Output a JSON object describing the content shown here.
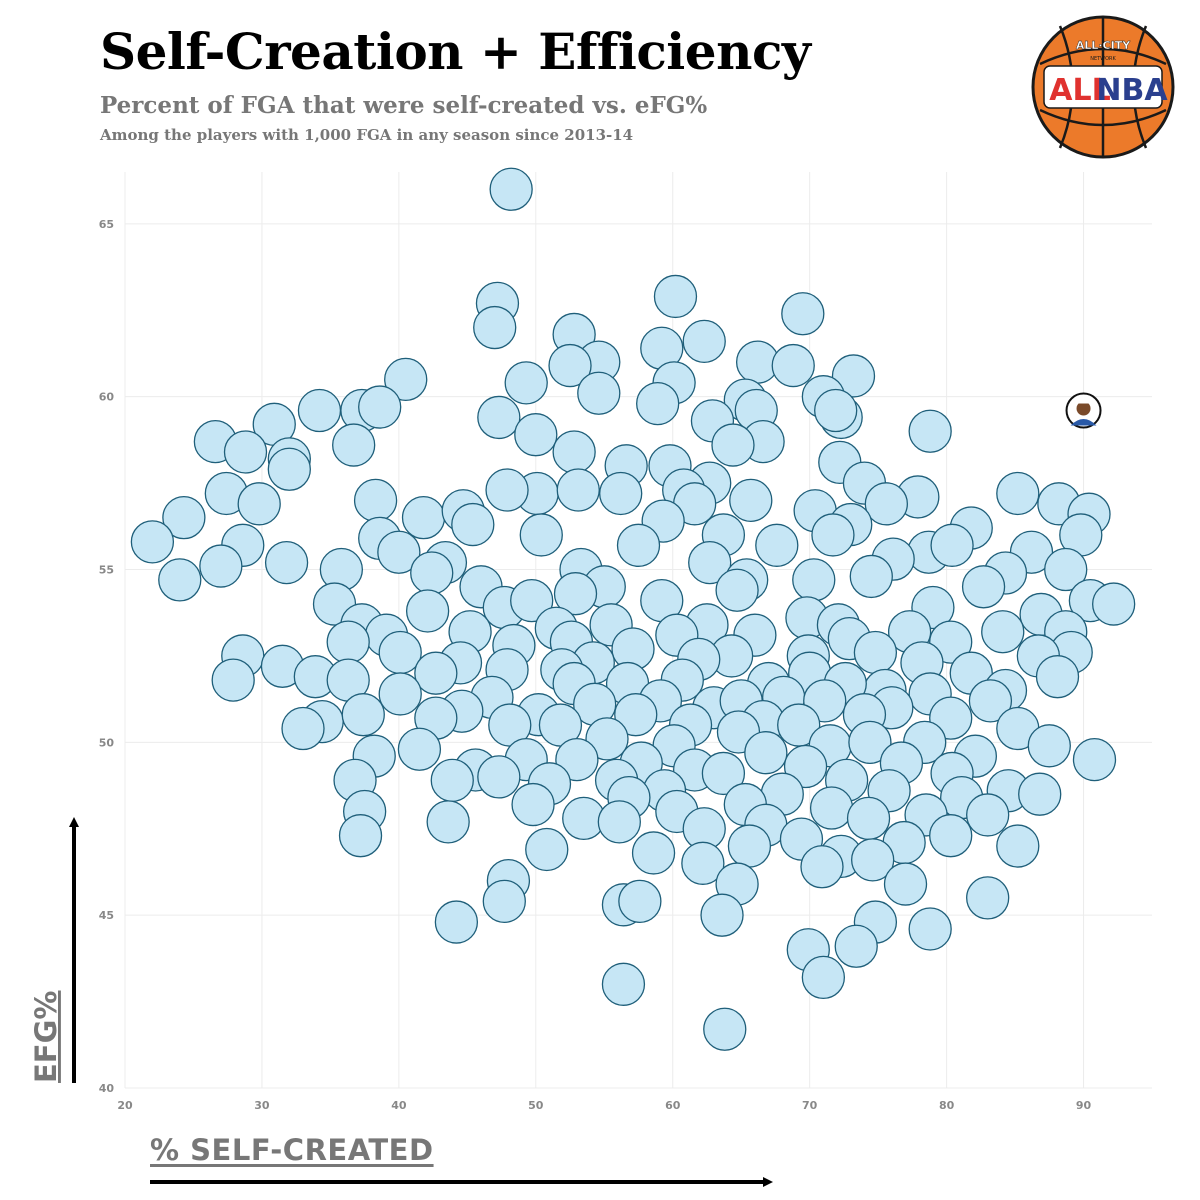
{
  "title": "Self-Creation + Efficiency",
  "subtitle": "Percent of FGA that were self-created vs. eFG%",
  "note": "Among the players with 1,000 FGA in any season since 2013-14",
  "logo": {
    "top_text": "ALL·CITY",
    "main_text_left": "ALL",
    "main_text_right": "NBA",
    "small_text": "NETWORK"
  },
  "colors": {
    "bubble_fill": "#c6e6f5",
    "bubble_stroke": "#1f5f7a",
    "grid": "#ececec",
    "axis_text": "#888888",
    "logo_orange": "#ec7a2a",
    "logo_red": "#e0322f",
    "logo_blue": "#2a3f8e"
  },
  "chart_data": {
    "type": "scatter",
    "xlabel": "% SELF-CREATED",
    "ylabel": "EFG%",
    "xlim": [
      20,
      95
    ],
    "ylim": [
      40,
      66.5
    ],
    "xticks": [
      20,
      30,
      40,
      50,
      60,
      70,
      80,
      90
    ],
    "yticks": [
      40,
      45,
      50,
      55,
      60,
      65
    ],
    "grid": true,
    "highlight": {
      "x": 90.0,
      "y": 59.6,
      "marker": "player-photo"
    },
    "points": [
      [
        48.2,
        66.0
      ],
      [
        60.2,
        62.9
      ],
      [
        47.2,
        62.7
      ],
      [
        69.5,
        62.4
      ],
      [
        47.0,
        62.0
      ],
      [
        52.8,
        61.8
      ],
      [
        62.3,
        61.6
      ],
      [
        59.2,
        61.4
      ],
      [
        66.2,
        61.0
      ],
      [
        68.8,
        60.9
      ],
      [
        73.2,
        60.6
      ],
      [
        54.6,
        61.0
      ],
      [
        52.5,
        60.9
      ],
      [
        49.3,
        60.4
      ],
      [
        40.5,
        60.5
      ],
      [
        60.1,
        60.4
      ],
      [
        71.0,
        60.0
      ],
      [
        54.6,
        60.1
      ],
      [
        65.3,
        59.9
      ],
      [
        34.2,
        59.6
      ],
      [
        37.3,
        59.6
      ],
      [
        38.6,
        59.7
      ],
      [
        72.3,
        59.4
      ],
      [
        71.9,
        59.6
      ],
      [
        66.1,
        59.6
      ],
      [
        47.3,
        59.4
      ],
      [
        58.9,
        59.8
      ],
      [
        62.9,
        59.3
      ],
      [
        78.8,
        59.0
      ],
      [
        30.9,
        59.2
      ],
      [
        26.6,
        58.7
      ],
      [
        50.0,
        58.9
      ],
      [
        66.6,
        58.7
      ],
      [
        64.4,
        58.6
      ],
      [
        36.7,
        58.6
      ],
      [
        28.8,
        58.4
      ],
      [
        52.8,
        58.4
      ],
      [
        72.2,
        58.1
      ],
      [
        32.0,
        58.2
      ],
      [
        59.8,
        58.0
      ],
      [
        32.0,
        57.9
      ],
      [
        56.6,
        58.0
      ],
      [
        62.7,
        57.5
      ],
      [
        74.0,
        57.5
      ],
      [
        27.4,
        57.2
      ],
      [
        50.1,
        57.2
      ],
      [
        47.9,
        57.3
      ],
      [
        53.1,
        57.3
      ],
      [
        60.8,
        57.3
      ],
      [
        65.7,
        57.0
      ],
      [
        77.9,
        57.1
      ],
      [
        85.2,
        57.2
      ],
      [
        88.2,
        56.9
      ],
      [
        90.4,
        56.6
      ],
      [
        75.6,
        56.9
      ],
      [
        81.8,
        56.2
      ],
      [
        38.3,
        57.0
      ],
      [
        41.8,
        56.5
      ],
      [
        24.3,
        56.5
      ],
      [
        44.7,
        56.7
      ],
      [
        29.8,
        56.9
      ],
      [
        45.4,
        56.3
      ],
      [
        63.7,
        56.0
      ],
      [
        56.2,
        57.2
      ],
      [
        70.4,
        56.7
      ],
      [
        73.0,
        56.3
      ],
      [
        61.6,
        56.9
      ],
      [
        59.3,
        56.4
      ],
      [
        67.6,
        55.7
      ],
      [
        71.7,
        56.0
      ],
      [
        89.8,
        56.0
      ],
      [
        38.6,
        55.9
      ],
      [
        50.4,
        56.0
      ],
      [
        22.0,
        55.8
      ],
      [
        28.6,
        55.7
      ],
      [
        43.4,
        55.2
      ],
      [
        40.0,
        55.5
      ],
      [
        78.7,
        55.5
      ],
      [
        80.4,
        55.7
      ],
      [
        86.2,
        55.5
      ],
      [
        57.5,
        55.7
      ],
      [
        62.7,
        55.2
      ],
      [
        76.1,
        55.3
      ],
      [
        31.8,
        55.2
      ],
      [
        27.0,
        55.1
      ],
      [
        35.8,
        55.0
      ],
      [
        53.3,
        55.0
      ],
      [
        84.3,
        54.9
      ],
      [
        74.5,
        54.8
      ],
      [
        88.7,
        55.0
      ],
      [
        65.4,
        54.7
      ],
      [
        42.4,
        54.9
      ],
      [
        70.3,
        54.7
      ],
      [
        55.0,
        54.5
      ],
      [
        64.7,
        54.4
      ],
      [
        24.0,
        54.7
      ],
      [
        46.0,
        54.5
      ],
      [
        82.7,
        54.5
      ],
      [
        52.9,
        54.3
      ],
      [
        90.5,
        54.1
      ],
      [
        92.2,
        54.0
      ],
      [
        59.2,
        54.1
      ],
      [
        35.3,
        54.0
      ],
      [
        47.7,
        53.9
      ],
      [
        49.7,
        54.1
      ],
      [
        79.0,
        53.9
      ],
      [
        69.8,
        53.6
      ],
      [
        86.9,
        53.7
      ],
      [
        62.5,
        53.4
      ],
      [
        37.3,
        53.4
      ],
      [
        55.5,
        53.4
      ],
      [
        51.5,
        53.3
      ],
      [
        72.1,
        53.4
      ],
      [
        42.1,
        53.8
      ],
      [
        88.7,
        53.2
      ],
      [
        72.9,
        53.0
      ],
      [
        77.3,
        53.2
      ],
      [
        60.3,
        53.1
      ],
      [
        66.0,
        53.1
      ],
      [
        84.1,
        53.2
      ],
      [
        39.1,
        53.1
      ],
      [
        45.2,
        53.2
      ],
      [
        52.6,
        52.9
      ],
      [
        48.4,
        52.8
      ],
      [
        36.3,
        52.9
      ],
      [
        80.3,
        52.9
      ],
      [
        74.8,
        52.6
      ],
      [
        57.1,
        52.7
      ],
      [
        69.9,
        52.5
      ],
      [
        64.3,
        52.5
      ],
      [
        89.1,
        52.6
      ],
      [
        61.9,
        52.4
      ],
      [
        28.6,
        52.5
      ],
      [
        86.7,
        52.5
      ],
      [
        40.1,
        52.6
      ],
      [
        54.2,
        52.3
      ],
      [
        78.2,
        52.3
      ],
      [
        44.5,
        52.3
      ],
      [
        31.5,
        52.2
      ],
      [
        51.9,
        52.1
      ],
      [
        70.0,
        52.0
      ],
      [
        47.9,
        52.1
      ],
      [
        33.9,
        51.9
      ],
      [
        42.7,
        52.0
      ],
      [
        60.7,
        51.8
      ],
      [
        81.8,
        52.0
      ],
      [
        27.9,
        51.8
      ],
      [
        56.7,
        51.7
      ],
      [
        67.0,
        51.7
      ],
      [
        75.5,
        51.5
      ],
      [
        72.6,
        51.7
      ],
      [
        88.1,
        51.9
      ],
      [
        36.3,
        51.8
      ],
      [
        52.8,
        51.7
      ],
      [
        78.8,
        51.4
      ],
      [
        84.3,
        51.5
      ],
      [
        68.1,
        51.3
      ],
      [
        46.8,
        51.3
      ],
      [
        59.1,
        51.2
      ],
      [
        63.0,
        51.0
      ],
      [
        71.1,
        51.2
      ],
      [
        40.1,
        51.4
      ],
      [
        54.3,
        51.1
      ],
      [
        65.0,
        51.2
      ],
      [
        76.0,
        51.0
      ],
      [
        83.2,
        51.2
      ],
      [
        50.2,
        50.8
      ],
      [
        44.6,
        50.9
      ],
      [
        34.4,
        50.6
      ],
      [
        57.3,
        50.8
      ],
      [
        61.3,
        50.5
      ],
      [
        37.4,
        50.8
      ],
      [
        74.0,
        50.8
      ],
      [
        66.6,
        50.6
      ],
      [
        80.3,
        50.7
      ],
      [
        51.8,
        50.5
      ],
      [
        85.2,
        50.4
      ],
      [
        69.2,
        50.5
      ],
      [
        48.1,
        50.5
      ],
      [
        42.7,
        50.7
      ],
      [
        33.0,
        50.4
      ],
      [
        55.2,
        50.1
      ],
      [
        78.4,
        50.0
      ],
      [
        60.1,
        49.9
      ],
      [
        64.8,
        50.3
      ],
      [
        71.5,
        49.9
      ],
      [
        41.5,
        49.8
      ],
      [
        74.4,
        50.0
      ],
      [
        82.1,
        49.6
      ],
      [
        87.5,
        49.9
      ],
      [
        49.3,
        49.5
      ],
      [
        53.0,
        49.5
      ],
      [
        66.8,
        49.7
      ],
      [
        45.6,
        49.2
      ],
      [
        38.2,
        49.6
      ],
      [
        57.7,
        49.4
      ],
      [
        61.6,
        49.2
      ],
      [
        76.7,
        49.4
      ],
      [
        90.8,
        49.5
      ],
      [
        80.4,
        49.1
      ],
      [
        69.7,
        49.3
      ],
      [
        36.8,
        48.9
      ],
      [
        55.9,
        48.9
      ],
      [
        63.7,
        49.1
      ],
      [
        47.3,
        49.0
      ],
      [
        72.7,
        48.9
      ],
      [
        84.5,
        48.6
      ],
      [
        51.0,
        48.8
      ],
      [
        43.9,
        48.9
      ],
      [
        59.4,
        48.6
      ],
      [
        75.8,
        48.6
      ],
      [
        68.0,
        48.5
      ],
      [
        81.1,
        48.4
      ],
      [
        56.8,
        48.4
      ],
      [
        86.8,
        48.5
      ],
      [
        65.3,
        48.2
      ],
      [
        49.8,
        48.2
      ],
      [
        71.6,
        48.1
      ],
      [
        37.5,
        48.0
      ],
      [
        60.3,
        48.0
      ],
      [
        43.6,
        47.7
      ],
      [
        78.5,
        47.9
      ],
      [
        53.5,
        47.8
      ],
      [
        83.0,
        47.9
      ],
      [
        66.8,
        47.6
      ],
      [
        56.1,
        47.7
      ],
      [
        74.3,
        47.8
      ],
      [
        62.3,
        47.5
      ],
      [
        80.3,
        47.3
      ],
      [
        37.2,
        47.3
      ],
      [
        69.4,
        47.2
      ],
      [
        76.9,
        47.1
      ],
      [
        50.8,
        46.9
      ],
      [
        65.6,
        47.0
      ],
      [
        58.6,
        46.8
      ],
      [
        72.3,
        46.7
      ],
      [
        85.2,
        47.0
      ],
      [
        62.2,
        46.5
      ],
      [
        74.6,
        46.6
      ],
      [
        48.0,
        46.0
      ],
      [
        70.9,
        46.4
      ],
      [
        64.7,
        45.9
      ],
      [
        77.0,
        45.9
      ],
      [
        83.0,
        45.5
      ],
      [
        47.7,
        45.4
      ],
      [
        56.4,
        45.3
      ],
      [
        57.6,
        45.4
      ],
      [
        63.6,
        45.0
      ],
      [
        74.8,
        44.8
      ],
      [
        44.2,
        44.8
      ],
      [
        78.8,
        44.6
      ],
      [
        73.4,
        44.1
      ],
      [
        69.9,
        44.0
      ],
      [
        71.0,
        43.2
      ],
      [
        56.4,
        43.0
      ],
      [
        63.8,
        41.7
      ]
    ]
  }
}
